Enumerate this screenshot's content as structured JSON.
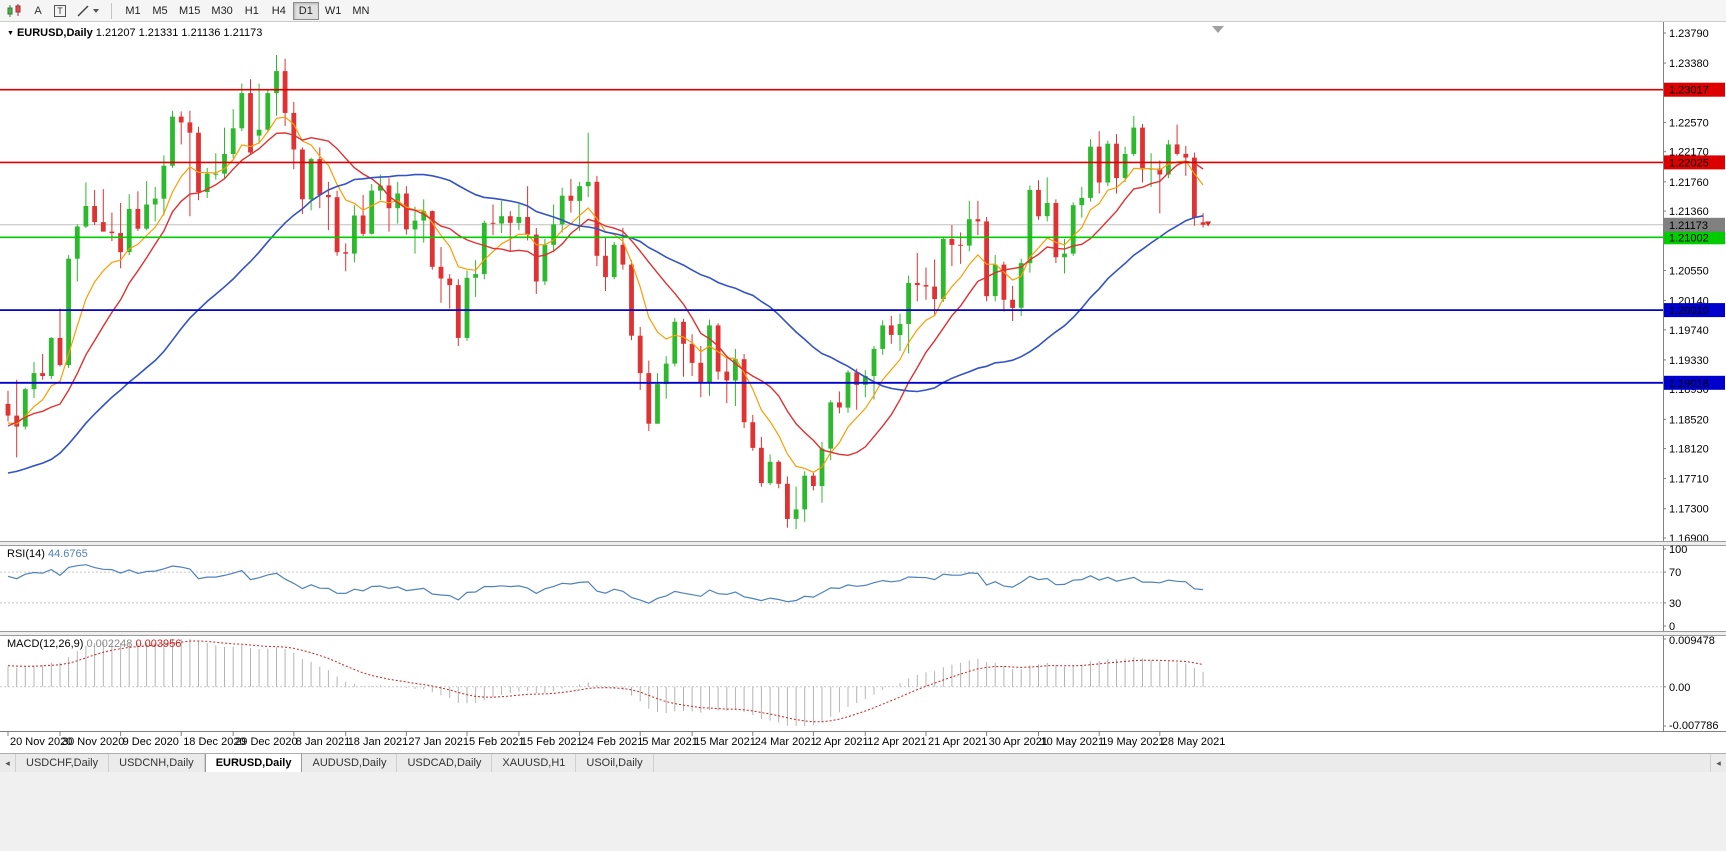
{
  "icons": {
    "collapse": "▼",
    "scroll_left": "◂",
    "scroll_right": "◂"
  },
  "toolbar": {
    "letter_a": "A",
    "letter_t": "T",
    "timeframes": [
      "M1",
      "M5",
      "M15",
      "M30",
      "H1",
      "H4",
      "D1",
      "W1",
      "MN"
    ],
    "active_timeframe": "D1"
  },
  "chart": {
    "title": "EURUSD,Daily",
    "ohlc": "1.21207 1.21331 1.21136 1.21173"
  },
  "chart_data": {
    "type": "candlestick",
    "symbol": "EURUSD",
    "timeframe": "Daily",
    "current_bar": {
      "open": 1.21207,
      "high": 1.21331,
      "low": 1.21136,
      "close": 1.21173
    },
    "colors": {
      "up": "#2db92d",
      "down": "#e03232",
      "background": "#ffffff",
      "axis_text": "#000000"
    },
    "price_axis": {
      "max": 1.2379,
      "min": 1.169,
      "labels": [
        "1.23790",
        "1.23380",
        "1.22570",
        "1.22170",
        "1.21760",
        "1.21360",
        "1.20550",
        "1.20140",
        "1.19740",
        "1.19330",
        "1.18930",
        "1.18520",
        "1.18120",
        "1.17710",
        "1.17300",
        "1.16900"
      ]
    },
    "hlines": [
      {
        "price": 1.23017,
        "label": "1.23017",
        "color": "#dd0000",
        "badge_fg": "#ffffff",
        "width": 1.6
      },
      {
        "price": 1.22025,
        "label": "1.22025",
        "color": "#dd0000",
        "badge_fg": "#ffffff",
        "width": 1.6
      },
      {
        "price": 1.21002,
        "label": "1.21002",
        "color": "#00cc00",
        "badge_fg": "#000000",
        "width": 1.6
      },
      {
        "price": 1.2001,
        "label": "1.20010",
        "color": "#0000cc",
        "badge_fg": "#ffffff",
        "width": 1.8
      },
      {
        "price": 1.19018,
        "label": "1.19018",
        "color": "#0000cc",
        "badge_fg": "#ffffff",
        "width": 1.8
      }
    ],
    "current_price": {
      "value": 1.21173,
      "label": "1.21173",
      "line_color": "#c0c0c0",
      "badge_bg": "#808080",
      "badge_fg": "#ffffff"
    },
    "sell_marker": {
      "price": 1.2115,
      "color": "#dd2020"
    },
    "moving_averages": [
      {
        "period": 8,
        "method": "ema",
        "color": "#ff9c00",
        "width": 1.2
      },
      {
        "period": 13,
        "method": "sma",
        "color": "#e03030",
        "width": 1.4
      },
      {
        "period": 34,
        "method": "sma",
        "color": "#3353c4",
        "width": 1.6
      }
    ],
    "indicators": {
      "rsi": {
        "name": "RSI(14)",
        "value": "44.6765",
        "period": 14,
        "levels": [
          100,
          70,
          30,
          0
        ],
        "color": "#4f81bd"
      },
      "macd": {
        "name": "MACD(12,26,9)",
        "value_main": "0.002248",
        "value_signal": "0.003956",
        "fast": 12,
        "slow": 26,
        "signal": 9,
        "max": 0.009478,
        "min": -0.007786,
        "axis_labels": [
          "0.009478",
          "0.00",
          "-0.007786"
        ],
        "hist_color": "#b4b4b4",
        "signal_color": "#cc2020"
      }
    },
    "date_labels": [
      {
        "text": "20 Nov 2020",
        "i": 0
      },
      {
        "text": "30 Nov 2020",
        "i": 6
      },
      {
        "text": "9 Dec 2020",
        "i": 13
      },
      {
        "text": "18 Dec 2020",
        "i": 20
      },
      {
        "text": "29 Dec 2020",
        "i": 26
      },
      {
        "text": "8 Jan 2021",
        "i": 33
      },
      {
        "text": "18 Jan 2021",
        "i": 39
      },
      {
        "text": "27 Jan 2021",
        "i": 46
      },
      {
        "text": "5 Feb 2021",
        "i": 53
      },
      {
        "text": "15 Feb 2021",
        "i": 59
      },
      {
        "text": "24 Feb 2021",
        "i": 66
      },
      {
        "text": "5 Mar 2021",
        "i": 73
      },
      {
        "text": "15 Mar 2021",
        "i": 79
      },
      {
        "text": "24 Mar 2021",
        "i": 86
      },
      {
        "text": "2 Apr 2021",
        "i": 93
      },
      {
        "text": "12 Apr 2021",
        "i": 99
      },
      {
        "text": "21 Apr 2021",
        "i": 106
      },
      {
        "text": "30 Apr 2021",
        "i": 113
      },
      {
        "text": "10 May 2021",
        "i": 119
      },
      {
        "text": "19 May 2021",
        "i": 126
      },
      {
        "text": "28 May 2021",
        "i": 133
      }
    ],
    "pre_window_closes": [
      1.164,
      1.1647,
      1.1638,
      1.165,
      1.1694,
      1.1716,
      1.1718,
      1.1748,
      1.1772,
      1.1786,
      1.1798,
      1.1826,
      1.1773,
      1.1748,
      1.1716,
      1.1756,
      1.1772,
      1.1805,
      1.1851,
      1.1872,
      1.1888,
      1.1873,
      1.1827,
      1.1816,
      1.1812,
      1.1868,
      1.1852,
      1.1863
    ],
    "candles": [
      [
        1.1873,
        1.1891,
        1.1849,
        1.1857
      ],
      [
        1.1857,
        1.1906,
        1.18,
        1.1842
      ],
      [
        1.1842,
        1.1895,
        1.1838,
        1.1893
      ],
      [
        1.1893,
        1.193,
        1.1881,
        1.1915
      ],
      [
        1.1915,
        1.1941,
        1.1906,
        1.1911
      ],
      [
        1.1911,
        1.1964,
        1.1907,
        1.1963
      ],
      [
        1.1963,
        1.2003,
        1.1924,
        1.1926
      ],
      [
        1.1926,
        1.2076,
        1.1922,
        1.2071
      ],
      [
        1.2071,
        1.2118,
        1.204,
        1.2115
      ],
      [
        1.2115,
        1.2175,
        1.2113,
        1.2143
      ],
      [
        1.2143,
        1.2165,
        1.2117,
        1.2121
      ],
      [
        1.2121,
        1.2166,
        1.2108,
        1.2108
      ],
      [
        1.2108,
        1.2134,
        1.2095,
        1.2106
      ],
      [
        1.2106,
        1.2147,
        1.2058,
        1.208
      ],
      [
        1.208,
        1.2159,
        1.2076,
        1.2139
      ],
      [
        1.2139,
        1.2163,
        1.2109,
        1.2112
      ],
      [
        1.2112,
        1.2177,
        1.211,
        1.2145
      ],
      [
        1.2145,
        1.2169,
        1.2122,
        1.2153
      ],
      [
        1.2153,
        1.2212,
        1.213,
        1.2198
      ],
      [
        1.2198,
        1.2273,
        1.2195,
        1.2265
      ],
      [
        1.2265,
        1.2272,
        1.2227,
        1.2257
      ],
      [
        1.2257,
        1.2273,
        1.2129,
        1.2243
      ],
      [
        1.2243,
        1.2251,
        1.2151,
        1.2162
      ],
      [
        1.2162,
        1.2195,
        1.2154,
        1.2187
      ],
      [
        1.2187,
        1.2215,
        1.2179,
        1.2187
      ],
      [
        1.2187,
        1.225,
        1.2181,
        1.2214
      ],
      [
        1.2214,
        1.2275,
        1.2208,
        1.2249
      ],
      [
        1.2249,
        1.231,
        1.2245,
        1.2297
      ],
      [
        1.2297,
        1.2316,
        1.2213,
        1.2216
      ],
      [
        1.2239,
        1.231,
        1.2228,
        1.2247
      ],
      [
        1.2247,
        1.2302,
        1.2245,
        1.2297
      ],
      [
        1.2297,
        1.2349,
        1.2266,
        1.2327
      ],
      [
        1.2327,
        1.2344,
        1.2252,
        1.227
      ],
      [
        1.227,
        1.2285,
        1.2193,
        1.222
      ],
      [
        1.222,
        1.2223,
        1.2132,
        1.2152
      ],
      [
        1.2152,
        1.2209,
        1.2137,
        1.2207
      ],
      [
        1.2207,
        1.2223,
        1.214,
        1.2158
      ],
      [
        1.2158,
        1.2176,
        1.211,
        1.2155
      ],
      [
        1.2155,
        1.2164,
        1.2075,
        1.208
      ],
      [
        1.208,
        1.2092,
        1.2054,
        1.2078
      ],
      [
        1.2078,
        1.2144,
        1.2066,
        1.213
      ],
      [
        1.213,
        1.2158,
        1.2102,
        1.2105
      ],
      [
        1.2105,
        1.2173,
        1.2104,
        1.2164
      ],
      [
        1.2164,
        1.2186,
        1.2151,
        1.2171
      ],
      [
        1.2171,
        1.2181,
        1.2108,
        1.214
      ],
      [
        1.214,
        1.2176,
        1.2119,
        1.216
      ],
      [
        1.216,
        1.217,
        1.2104,
        1.2111
      ],
      [
        1.2111,
        1.2142,
        1.2078,
        1.2123
      ],
      [
        1.2123,
        1.2152,
        1.2093,
        1.2136
      ],
      [
        1.2136,
        1.2137,
        1.2056,
        1.206
      ],
      [
        1.206,
        1.2087,
        1.2011,
        1.2044
      ],
      [
        1.2044,
        1.205,
        1.2003,
        1.2035
      ],
      [
        1.2035,
        1.2043,
        1.1952,
        1.1963
      ],
      [
        1.1963,
        1.2055,
        1.1959,
        1.2045
      ],
      [
        1.2045,
        1.2069,
        1.2019,
        1.205
      ],
      [
        1.205,
        1.2123,
        1.2043,
        1.212
      ],
      [
        1.212,
        1.2145,
        1.2103,
        1.2119
      ],
      [
        1.2119,
        1.215,
        1.2106,
        1.2129
      ],
      [
        1.2129,
        1.2136,
        1.2082,
        1.212
      ],
      [
        1.212,
        1.2146,
        1.211,
        1.2128
      ],
      [
        1.2128,
        1.217,
        1.2096,
        1.2104
      ],
      [
        1.2104,
        1.2113,
        1.2023,
        1.204
      ],
      [
        1.204,
        1.2098,
        1.2035,
        1.209
      ],
      [
        1.209,
        1.2145,
        1.208,
        1.2118
      ],
      [
        1.2118,
        1.2168,
        1.2107,
        1.2157
      ],
      [
        1.2157,
        1.218,
        1.2134,
        1.215
      ],
      [
        1.215,
        1.2176,
        1.2109,
        1.217
      ],
      [
        1.217,
        1.2243,
        1.2155,
        1.2176
      ],
      [
        1.2176,
        1.2184,
        1.2061,
        1.2075
      ],
      [
        1.2075,
        1.2101,
        1.2027,
        1.2046
      ],
      [
        1.2046,
        1.2094,
        1.2043,
        1.209
      ],
      [
        1.209,
        1.2113,
        1.2056,
        1.2063
      ],
      [
        1.2063,
        1.2069,
        1.196,
        1.1966
      ],
      [
        1.1966,
        1.1978,
        1.1892,
        1.1915
      ],
      [
        1.1915,
        1.1932,
        1.1836,
        1.1846
      ],
      [
        1.1846,
        1.1915,
        1.1846,
        1.19
      ],
      [
        1.19,
        1.1938,
        1.188,
        1.1928
      ],
      [
        1.1928,
        1.199,
        1.1924,
        1.1985
      ],
      [
        1.1985,
        1.1989,
        1.191,
        1.1955
      ],
      [
        1.1955,
        1.1968,
        1.1911,
        1.1929
      ],
      [
        1.1929,
        1.1952,
        1.1882,
        1.1901
      ],
      [
        1.1901,
        1.1988,
        1.1884,
        1.198
      ],
      [
        1.198,
        1.1983,
        1.1906,
        1.1917
      ],
      [
        1.1917,
        1.1936,
        1.1874,
        1.1905
      ],
      [
        1.1905,
        1.1948,
        1.187,
        1.1934
      ],
      [
        1.1934,
        1.1941,
        1.184,
        1.1848
      ],
      [
        1.1848,
        1.1858,
        1.1809,
        1.1813
      ],
      [
        1.1813,
        1.1828,
        1.176,
        1.1765
      ],
      [
        1.1765,
        1.1804,
        1.1762,
        1.1794
      ],
      [
        1.1794,
        1.1796,
        1.1758,
        1.1764
      ],
      [
        1.1764,
        1.1774,
        1.1704,
        1.1716
      ],
      [
        1.1716,
        1.176,
        1.1702,
        1.1729
      ],
      [
        1.1729,
        1.1781,
        1.1712,
        1.1775
      ],
      [
        1.1775,
        1.1779,
        1.1755,
        1.1761
      ],
      [
        1.1761,
        1.1821,
        1.1738,
        1.1812
      ],
      [
        1.1812,
        1.1878,
        1.1796,
        1.1875
      ],
      [
        1.1875,
        1.189,
        1.186,
        1.1868
      ],
      [
        1.1868,
        1.1919,
        1.1861,
        1.1916
      ],
      [
        1.1916,
        1.1921,
        1.1865,
        1.1899
      ],
      [
        1.1899,
        1.1919,
        1.1882,
        1.1911
      ],
      [
        1.1911,
        1.1952,
        1.1879,
        1.1948
      ],
      [
        1.1948,
        1.1987,
        1.194,
        1.198
      ],
      [
        1.198,
        1.1993,
        1.1955,
        1.1967
      ],
      [
        1.1967,
        1.1996,
        1.1945,
        1.1982
      ],
      [
        1.1982,
        1.2048,
        1.1942,
        1.2038
      ],
      [
        1.2038,
        1.2079,
        1.2013,
        1.2035
      ],
      [
        1.2035,
        1.2059,
        1.2015,
        1.2033
      ],
      [
        1.2033,
        1.207,
        1.1994,
        1.2016
      ],
      [
        1.2016,
        1.21,
        1.2012,
        1.2098
      ],
      [
        1.2098,
        1.2117,
        1.2061,
        1.209
      ],
      [
        1.209,
        1.2107,
        1.2064,
        1.2089
      ],
      [
        1.2089,
        1.215,
        1.2081,
        1.2125
      ],
      [
        1.2125,
        1.215,
        1.2103,
        1.2122
      ],
      [
        1.2122,
        1.2128,
        1.2013,
        1.202
      ],
      [
        1.202,
        1.2076,
        1.2013,
        1.2063
      ],
      [
        1.2063,
        1.2067,
        1.1999,
        1.2015
      ],
      [
        1.2015,
        1.2034,
        1.1986,
        1.2004
      ],
      [
        1.2004,
        1.2071,
        1.1993,
        1.2065
      ],
      [
        1.2065,
        1.2171,
        1.2052,
        1.2165
      ],
      [
        1.2165,
        1.2178,
        1.2124,
        1.2129
      ],
      [
        1.2129,
        1.2182,
        1.2122,
        1.2147
      ],
      [
        1.2147,
        1.2152,
        1.2065,
        1.2073
      ],
      [
        1.2073,
        1.2098,
        1.2051,
        1.2078
      ],
      [
        1.2078,
        1.2148,
        1.2075,
        1.2144
      ],
      [
        1.2144,
        1.2169,
        1.2127,
        1.2154
      ],
      [
        1.2154,
        1.2234,
        1.2149,
        1.2224
      ],
      [
        1.2224,
        1.2245,
        1.216,
        1.2175
      ],
      [
        1.2175,
        1.2232,
        1.217,
        1.2228
      ],
      [
        1.2228,
        1.2241,
        1.216,
        1.2181
      ],
      [
        1.2181,
        1.2224,
        1.2176,
        1.2214
      ],
      [
        1.2214,
        1.2266,
        1.2211,
        1.225
      ],
      [
        1.225,
        1.2255,
        1.2175,
        1.2193
      ],
      [
        1.2193,
        1.2215,
        1.2169,
        1.2194
      ],
      [
        1.2194,
        1.2205,
        1.2133,
        1.2186
      ],
      [
        1.2186,
        1.2233,
        1.2181,
        1.2227
      ],
      [
        1.2227,
        1.2254,
        1.2212,
        1.2214
      ],
      [
        1.2214,
        1.2225,
        1.2184,
        1.2209
      ],
      [
        1.2209,
        1.2216,
        1.2116,
        1.2127
      ],
      [
        1.21207,
        1.21331,
        1.21136,
        1.21173
      ]
    ]
  },
  "tabs": {
    "items": [
      "USDCHF,Daily",
      "USDCNH,Daily",
      "EURUSD,Daily",
      "AUDUSD,Daily",
      "USDCAD,Daily",
      "XAUUSD,H1",
      "USOil,Daily"
    ],
    "active": "EURUSD,Daily"
  }
}
